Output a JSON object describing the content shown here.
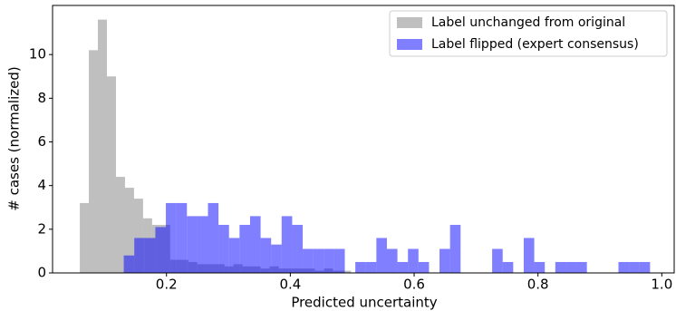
{
  "chart_data": {
    "type": "histogram",
    "xlabel": "Predicted uncertainty",
    "ylabel": "# cases (normalized)",
    "xlim": [
      0.016,
      1.02
    ],
    "xticks": [
      0.2,
      0.4,
      0.6,
      0.8,
      {
        "value": 1.0,
        "label": "1.0"
      }
    ],
    "ylim": [
      0,
      12.25
    ],
    "yticks": [
      0,
      2,
      4,
      6,
      8,
      10
    ],
    "legend": "upper right",
    "alpha": 0.5,
    "series": [
      {
        "name": "Label unchanged from original",
        "color": "#808080",
        "bins": [
          0.06,
          0.0746,
          0.0892,
          0.1038,
          0.1184,
          0.133,
          0.1476,
          0.1622,
          0.1768,
          0.1914,
          0.206,
          0.2206,
          0.2352,
          0.2498,
          0.2644,
          0.279,
          0.2936,
          0.3082,
          0.3228,
          0.3374,
          0.352,
          0.3666,
          0.3812,
          0.3958,
          0.4104,
          0.425,
          0.4396,
          0.4542,
          0.4688,
          0.4834,
          0.498
        ],
        "values": [
          3.2,
          10.2,
          11.6,
          9.0,
          4.4,
          3.9,
          3.4,
          2.5,
          2.2,
          2.2,
          0.6,
          0.6,
          0.5,
          0.4,
          0.4,
          0.4,
          0.3,
          0.4,
          0.3,
          0.3,
          0.2,
          0.3,
          0.2,
          0.2,
          0.2,
          0.2,
          0.1,
          0.2,
          0.1,
          0.1
        ]
      },
      {
        "name": "Label flipped (expert consensus)",
        "color": "#0000ff",
        "bins": [
          0.131,
          0.148,
          0.165,
          0.182,
          0.199,
          0.216,
          0.233,
          0.25,
          0.267,
          0.284,
          0.301,
          0.318,
          0.335,
          0.352,
          0.369,
          0.386,
          0.403,
          0.42,
          0.437,
          0.454,
          0.471,
          0.488,
          0.505,
          0.522,
          0.539,
          0.556,
          0.573,
          0.59,
          0.607,
          0.624,
          0.641,
          0.658,
          0.675,
          0.692,
          0.709,
          0.726,
          0.743,
          0.76,
          0.777,
          0.794,
          0.811,
          0.828,
          0.845,
          0.862,
          0.879,
          0.896,
          0.913,
          0.93,
          0.947,
          0.964,
          0.981
        ],
        "values": [
          0.8,
          1.6,
          1.6,
          2.1,
          3.2,
          3.2,
          2.6,
          2.6,
          3.2,
          2.2,
          1.6,
          2.2,
          2.6,
          1.6,
          1.3,
          2.6,
          2.2,
          1.1,
          1.1,
          1.1,
          1.1,
          0,
          0.5,
          0.5,
          1.6,
          1.1,
          0.5,
          1.1,
          0.5,
          0,
          1.1,
          2.2,
          0,
          0,
          0,
          1.1,
          0.5,
          0,
          1.6,
          0.5,
          0,
          0.5,
          0.5,
          0.5,
          0,
          0,
          0,
          0.5,
          0.5,
          0.5
        ]
      }
    ]
  }
}
